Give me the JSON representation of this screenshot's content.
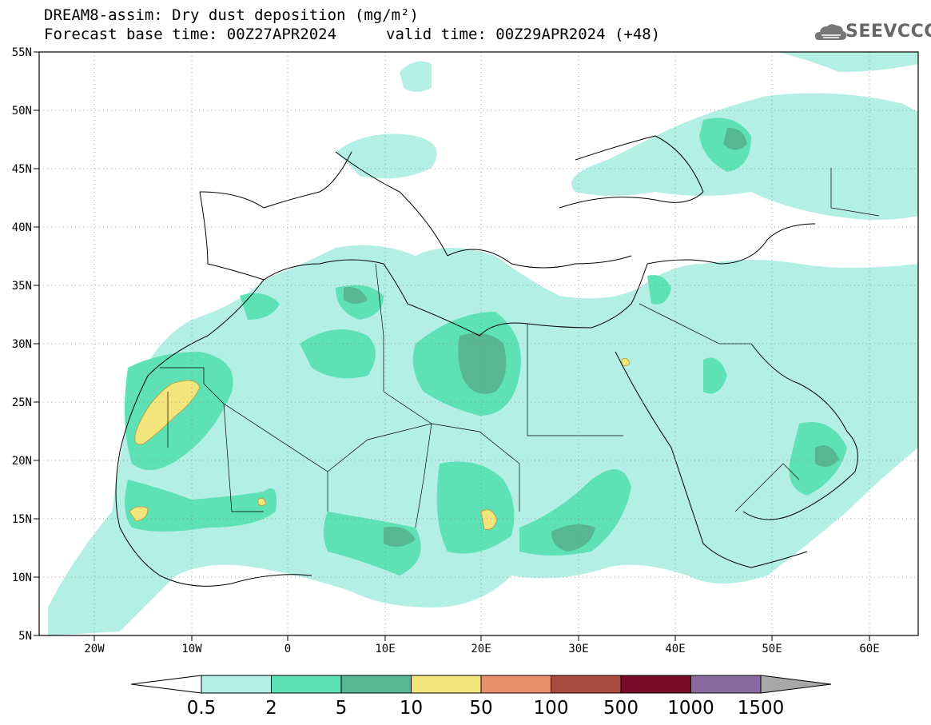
{
  "title": {
    "line1": "DREAM8-assim: Dry dust deposition (mg/m²)",
    "base_time": "Forecast base time: 00Z27APR2024",
    "valid_time": "valid time: 00Z29APR2024 (+48)"
  },
  "logo": {
    "text": "SEEVCCC",
    "icon": "cloud-icon"
  },
  "axes": {
    "lat_labels": [
      "55N",
      "50N",
      "45N",
      "40N",
      "35N",
      "30N",
      "25N",
      "20N",
      "15N",
      "10N",
      "5N"
    ],
    "lon_labels": [
      "20W",
      "10W",
      "0",
      "10E",
      "20E",
      "30E",
      "40E",
      "50E",
      "60E"
    ]
  },
  "colorbar": {
    "labels": [
      "0.5",
      "2",
      "5",
      "10",
      "50",
      "100",
      "500",
      "1000",
      "1500"
    ],
    "colors": [
      "#b4efe6",
      "#5ee1b5",
      "#58b793",
      "#f2e57c",
      "#e8906a",
      "#a84c3e",
      "#7a0a2a",
      "#8a6a9e",
      "#a8a8a8"
    ]
  }
}
